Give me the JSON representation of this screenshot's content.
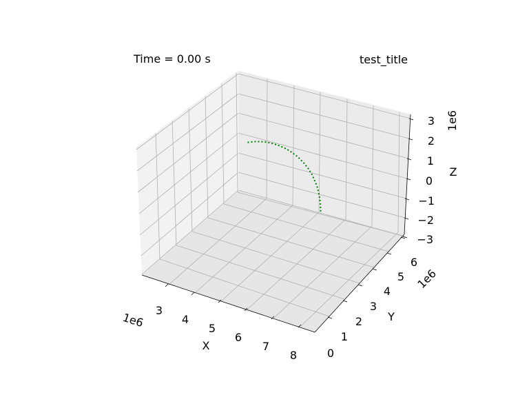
{
  "figure": {
    "annotation": "Time = 0.00 s",
    "title": "test_title"
  },
  "chart_data": {
    "type": "line3d",
    "title": "test_title",
    "xlabel": "X",
    "ylabel": "Y",
    "zlabel": "Z",
    "offsets": {
      "x": "1e6",
      "y": "1e6",
      "z": "1e6"
    },
    "xlim": [
      2.2,
      8.3
    ],
    "ylim": [
      -0.3,
      6.6
    ],
    "zlim": [
      -3.0,
      3.0
    ],
    "xticks": [
      3,
      4,
      5,
      6,
      7,
      8
    ],
    "yticks": [
      0,
      1,
      2,
      3,
      4,
      5,
      6
    ],
    "zticks": [
      3,
      2,
      1,
      0,
      -1,
      -2,
      -3
    ],
    "xtick_labels": [
      "3",
      "4",
      "5",
      "6",
      "7",
      "8"
    ],
    "ytick_labels": [
      "0",
      "1",
      "2",
      "3",
      "4",
      "5",
      "6"
    ],
    "ztick_labels": [
      "3",
      "2",
      "1",
      "0",
      "−1",
      "−2",
      "−3"
    ],
    "grid": true,
    "series": [
      {
        "color": "#008000",
        "linestyle": "dotted",
        "x": [
          5.53,
          5.48,
          5.43,
          5.38,
          5.33,
          5.27,
          5.22,
          5.16,
          5.1,
          5.04,
          4.98,
          4.92,
          4.86,
          4.8,
          4.74,
          4.68,
          4.62,
          4.56,
          4.5
        ],
        "y": [
          5.8,
          5.9,
          5.97,
          6.0,
          6.0,
          5.96,
          5.89,
          5.78,
          5.64,
          5.47,
          5.27,
          5.05,
          4.8,
          4.53,
          4.24,
          3.94,
          3.62,
          3.29,
          2.95
        ],
        "z": [
          -2.04,
          -1.81,
          -1.56,
          -1.3,
          -1.03,
          -0.75,
          -0.46,
          -0.17,
          0.12,
          0.41,
          0.69,
          0.96,
          1.22,
          1.47,
          1.7,
          1.91,
          2.1,
          2.26,
          2.39
        ]
      }
    ]
  }
}
